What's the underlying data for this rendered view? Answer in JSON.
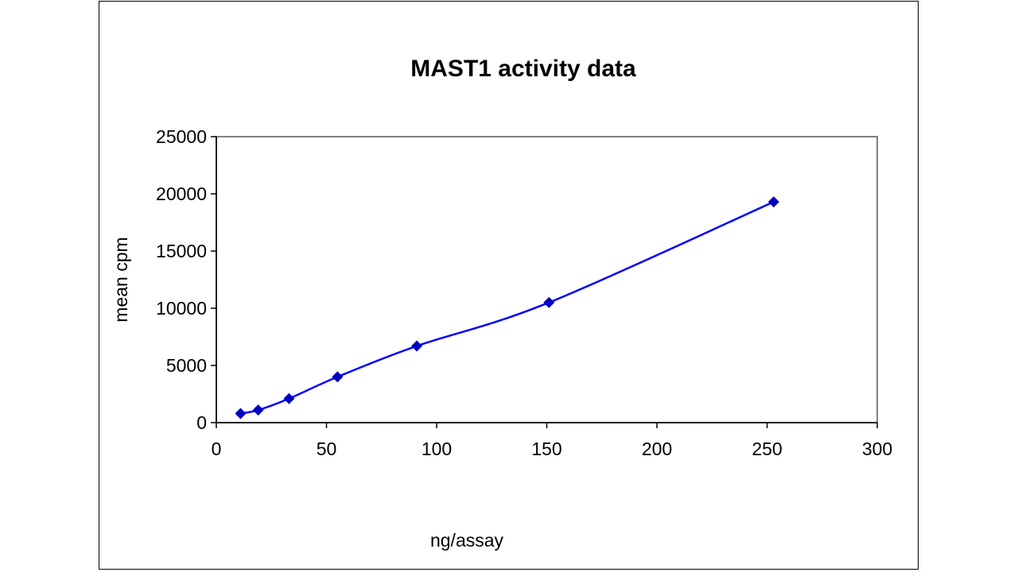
{
  "chart_data": {
    "type": "line",
    "title": "MAST1 activity data",
    "xlabel": "ng/assay",
    "ylabel": "mean cpm",
    "xlim": [
      0,
      300
    ],
    "ylim": [
      0,
      25000
    ],
    "xticks": [
      "0",
      "50",
      "100",
      "150",
      "200",
      "250",
      "300"
    ],
    "yticks": [
      "0",
      "5000",
      "10000",
      "15000",
      "20000",
      "25000"
    ],
    "grid": false,
    "legend": "none",
    "series": [
      {
        "name": "MAST1",
        "color": "#0000ff",
        "marker_color": "#0000c0",
        "x": [
          11,
          19,
          33,
          55,
          91,
          151,
          253
        ],
        "y": [
          800,
          1100,
          2100,
          4000,
          6700,
          10500,
          19300
        ]
      }
    ]
  }
}
